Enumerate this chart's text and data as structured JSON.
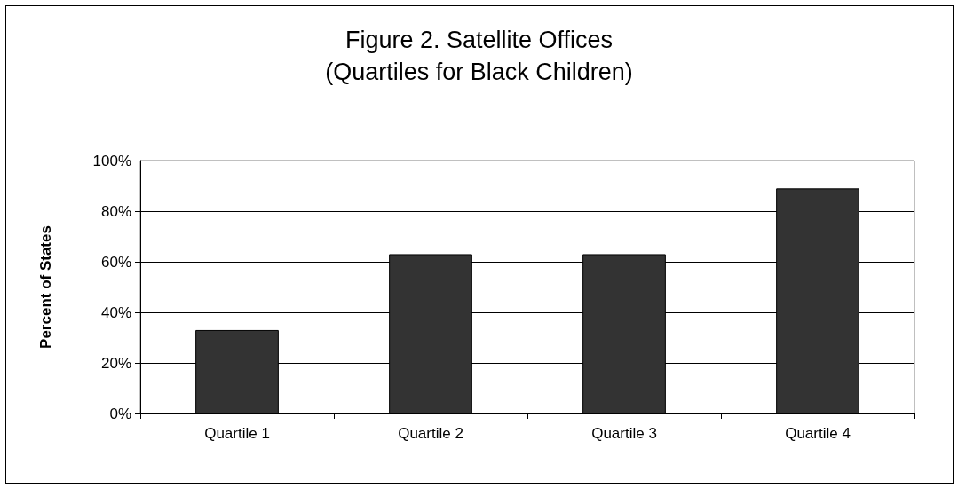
{
  "chart_data": {
    "type": "bar",
    "title": "Figure 2. Satellite Offices\n(Quartiles for Black Children)",
    "ylabel": "Percent of States",
    "categories": [
      "Quartile 1",
      "Quartile 2",
      "Quartile 3",
      "Quartile 4"
    ],
    "values": [
      33,
      63,
      63,
      89
    ],
    "color": "#333333",
    "ylim": [
      0,
      100
    ],
    "yticks": [
      {
        "value": 0,
        "label": "0%"
      },
      {
        "value": 20,
        "label": "20%"
      },
      {
        "value": 40,
        "label": "40%"
      },
      {
        "value": 60,
        "label": "60%"
      },
      {
        "value": 80,
        "label": "80%"
      },
      {
        "value": 100,
        "label": "100%"
      }
    ],
    "grid": "y"
  }
}
